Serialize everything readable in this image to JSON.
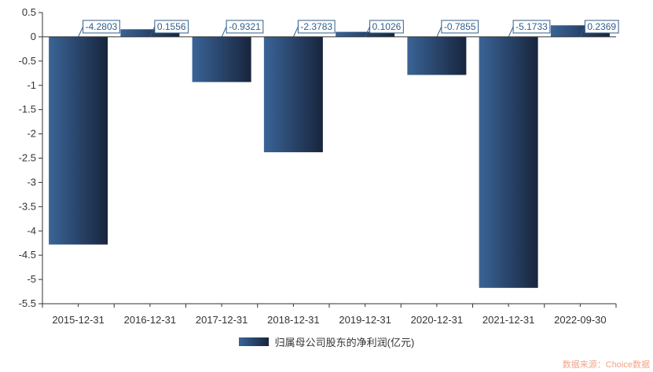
{
  "chart_data": {
    "type": "bar",
    "categories": [
      "2015-12-31",
      "2016-12-31",
      "2017-12-31",
      "2018-12-31",
      "2019-12-31",
      "2020-12-31",
      "2021-12-31",
      "2022-09-30"
    ],
    "series": [
      {
        "name": "归属母公司股东的净利润(亿元)",
        "values": [
          -4.2803,
          0.1556,
          -0.9321,
          -2.3783,
          0.1026,
          -0.7855,
          -5.1733,
          0.2369
        ],
        "labels": [
          "-4.2803",
          "0.1556",
          "-0.9321",
          "-2.3783",
          "0.1026",
          "-0.7855",
          "-5.1733",
          "0.2369"
        ]
      }
    ],
    "ylim": [
      -5.5,
      0.5
    ],
    "yticks": [
      "0.5",
      "0",
      "-0.5",
      "-1",
      "-1.5",
      "-2",
      "-2.5",
      "-3",
      "-3.5",
      "-4",
      "-4.5",
      "-5",
      "-5.5"
    ],
    "xlabel": "",
    "ylabel": "",
    "grid": false,
    "legend": "bottom-center",
    "colors": {
      "bar_light": "#3a6497",
      "bar_dark": "#18253d",
      "label": "#2f5d8a",
      "axis": "#333333"
    }
  },
  "legend": {
    "label": "归属母公司股东的净利润(亿元)"
  },
  "watermark": "数据来源：Choice数据"
}
